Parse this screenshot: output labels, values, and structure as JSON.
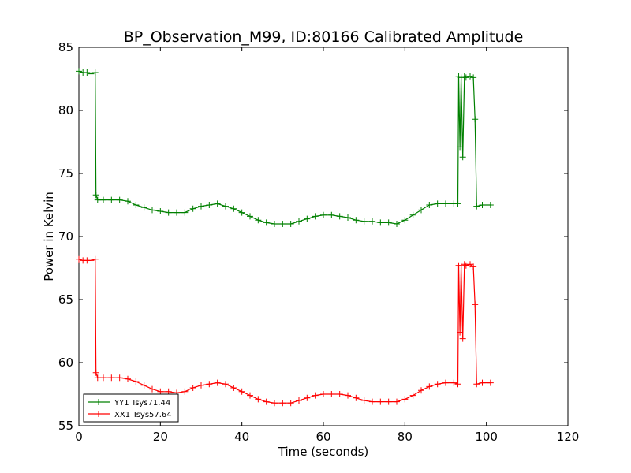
{
  "chart_data": {
    "type": "line",
    "title": "BP_Observation_M99, ID:80166 Calibrated Amplitude",
    "xlabel": "Time (seconds)",
    "ylabel": "Power in Kelvin",
    "xlim": [
      0,
      120
    ],
    "ylim": [
      55,
      85
    ],
    "xticks": [
      0,
      20,
      40,
      60,
      80,
      100,
      120
    ],
    "yticks": [
      55,
      60,
      65,
      70,
      75,
      80,
      85
    ],
    "grid": false,
    "legend_position": "lower-left",
    "marker": "+",
    "series": [
      {
        "name": "YY1 Tsys71.44",
        "color": "#008000",
        "x": [
          0,
          1,
          2,
          3,
          4,
          4.2,
          4.6,
          6,
          8,
          10,
          12,
          14,
          16,
          18,
          20,
          22,
          24,
          26,
          28,
          30,
          32,
          34,
          36,
          38,
          40,
          42,
          44,
          46,
          48,
          50,
          52,
          54,
          56,
          58,
          60,
          62,
          64,
          66,
          68,
          70,
          72,
          74,
          76,
          78,
          80,
          82,
          84,
          86,
          88,
          90,
          92,
          93,
          93.2,
          93.5,
          93.8,
          94.2,
          94.6,
          95,
          96,
          96.8,
          97.2,
          97.6,
          99,
          101
        ],
        "y": [
          83.1,
          83.0,
          83.0,
          82.9,
          83.0,
          73.3,
          72.9,
          72.9,
          72.9,
          72.9,
          72.8,
          72.5,
          72.3,
          72.1,
          72.0,
          71.9,
          71.9,
          71.9,
          72.2,
          72.4,
          72.5,
          72.6,
          72.4,
          72.2,
          71.9,
          71.6,
          71.3,
          71.1,
          71.0,
          71.0,
          71.0,
          71.2,
          71.4,
          71.6,
          71.7,
          71.7,
          71.6,
          71.5,
          71.3,
          71.2,
          71.2,
          71.1,
          71.1,
          71.0,
          71.3,
          71.7,
          72.1,
          72.5,
          72.6,
          72.6,
          72.6,
          72.6,
          82.7,
          77.1,
          82.6,
          76.3,
          82.7,
          82.6,
          82.7,
          82.6,
          79.3,
          72.4,
          72.5,
          72.5
        ]
      },
      {
        "name": "XX1 Tsys57.64",
        "color": "#ff0000",
        "x": [
          0,
          1,
          2,
          3,
          4,
          4.2,
          4.6,
          6,
          8,
          10,
          12,
          14,
          16,
          18,
          20,
          22,
          24,
          26,
          28,
          30,
          32,
          34,
          36,
          38,
          40,
          42,
          44,
          46,
          48,
          50,
          52,
          54,
          56,
          58,
          60,
          62,
          64,
          66,
          68,
          70,
          72,
          74,
          76,
          78,
          80,
          82,
          84,
          86,
          88,
          90,
          92,
          93,
          93.2,
          93.5,
          93.8,
          94.2,
          94.6,
          95,
          96,
          96.8,
          97.2,
          97.6,
          99,
          101
        ],
        "y": [
          68.2,
          68.1,
          68.1,
          68.1,
          68.2,
          59.2,
          58.8,
          58.8,
          58.8,
          58.8,
          58.7,
          58.5,
          58.2,
          57.9,
          57.7,
          57.7,
          57.6,
          57.7,
          58.0,
          58.2,
          58.3,
          58.4,
          58.3,
          58.0,
          57.7,
          57.4,
          57.1,
          56.9,
          56.8,
          56.8,
          56.8,
          57.0,
          57.2,
          57.4,
          57.5,
          57.5,
          57.5,
          57.4,
          57.2,
          57.0,
          56.9,
          56.9,
          56.9,
          56.9,
          57.1,
          57.4,
          57.8,
          58.1,
          58.3,
          58.4,
          58.4,
          58.3,
          67.7,
          62.4,
          67.7,
          61.9,
          67.8,
          67.7,
          67.8,
          67.6,
          64.6,
          58.3,
          58.4,
          58.4
        ]
      }
    ]
  }
}
